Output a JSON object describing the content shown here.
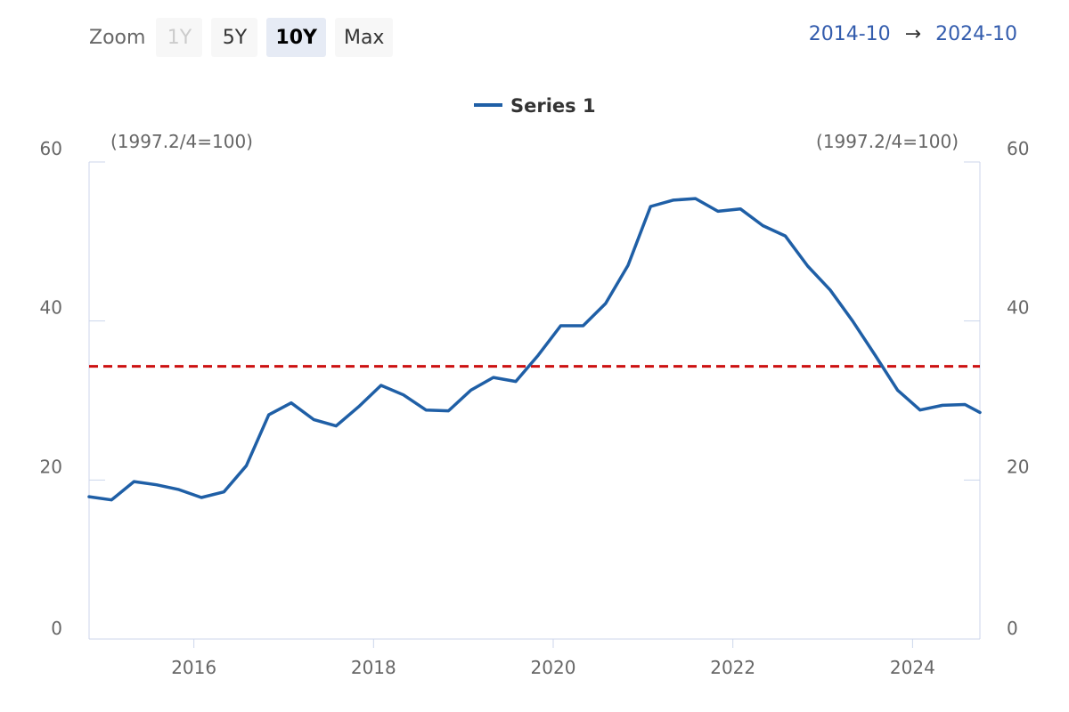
{
  "toolbar": {
    "zoom_label": "Zoom",
    "buttons": [
      {
        "label": "1Y",
        "state": "disabled"
      },
      {
        "label": "5Y",
        "state": "normal"
      },
      {
        "label": "10Y",
        "state": "selected"
      },
      {
        "label": "Max",
        "state": "normal"
      }
    ],
    "range_from": "2014-10",
    "range_arrow": "→",
    "range_to": "2024-10"
  },
  "colors": {
    "series": "#1f5fa6",
    "reference_line": "#cc1111",
    "axis": "#ccd6eb",
    "tick_text": "#666666",
    "range_text": "#335cad"
  },
  "chart_data": {
    "type": "line",
    "title": "",
    "legend": {
      "position": "top-center",
      "entries": [
        "Series 1"
      ]
    },
    "y_left_unit": "(1997.2/4=100)",
    "y_right_unit": "(1997.2/4=100)",
    "ylim": [
      0,
      60
    ],
    "y_ticks": [
      0,
      20,
      40,
      60
    ],
    "xlim": [
      "2014-11",
      "2024-10"
    ],
    "x_ticks": [
      "2016",
      "2018",
      "2020",
      "2022",
      "2024"
    ],
    "grid": false,
    "reference_line": {
      "y": 34.3,
      "style": "dashed"
    },
    "series": [
      {
        "name": "Series 1",
        "x": [
          "2014-11",
          "2015-02",
          "2015-05",
          "2015-08",
          "2015-11",
          "2016-02",
          "2016-05",
          "2016-08",
          "2016-11",
          "2017-02",
          "2017-05",
          "2017-08",
          "2017-11",
          "2018-02",
          "2018-05",
          "2018-08",
          "2018-11",
          "2019-02",
          "2019-05",
          "2019-08",
          "2019-11",
          "2020-02",
          "2020-05",
          "2020-08",
          "2020-11",
          "2021-02",
          "2021-05",
          "2021-08",
          "2021-11",
          "2022-02",
          "2022-05",
          "2022-08",
          "2022-11",
          "2023-02",
          "2023-05",
          "2023-08",
          "2023-11",
          "2024-02",
          "2024-05",
          "2024-08",
          "2024-10"
        ],
        "values": [
          17.9,
          17.5,
          19.8,
          19.4,
          18.8,
          17.8,
          18.5,
          21.8,
          28.2,
          29.7,
          27.6,
          26.8,
          29.2,
          31.9,
          30.7,
          28.8,
          28.7,
          31.3,
          32.9,
          32.4,
          35.7,
          39.4,
          39.4,
          42.2,
          47.0,
          54.4,
          55.2,
          55.4,
          53.8,
          54.1,
          52.0,
          50.7,
          46.9,
          43.9,
          40.0,
          35.7,
          31.3,
          28.8,
          29.4,
          29.5,
          28.5
        ]
      }
    ]
  }
}
